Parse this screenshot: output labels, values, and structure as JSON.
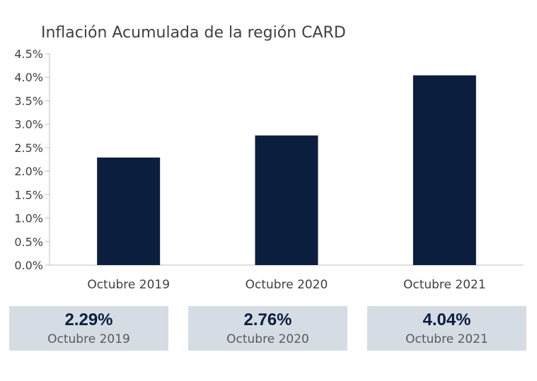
{
  "chart_data": {
    "type": "bar",
    "title": "Inflación Acumulada de la región CARD",
    "categories": [
      "Octubre 2019",
      "Octubre 2020",
      "Octubre 2021"
    ],
    "values": [
      2.29,
      2.76,
      4.04
    ],
    "ylim": [
      0,
      4.5
    ],
    "yticks": [
      "0.0%",
      "0.5%",
      "1.0%",
      "1.5%",
      "2.0%",
      "2.5%",
      "3.0%",
      "3.5%",
      "4.0%",
      "4.5%"
    ],
    "bar_color": "#0c1e3d",
    "grid": false,
    "legend": "none"
  },
  "summary_cards": [
    {
      "value": "2.29%",
      "label": "Octubre 2019"
    },
    {
      "value": "2.76%",
      "label": "Octubre 2020"
    },
    {
      "value": "4.04%",
      "label": "Octubre 2021"
    }
  ],
  "colors": {
    "bar": "#0c1e3d",
    "card_background": "#d6dce4",
    "text": "#404040"
  }
}
